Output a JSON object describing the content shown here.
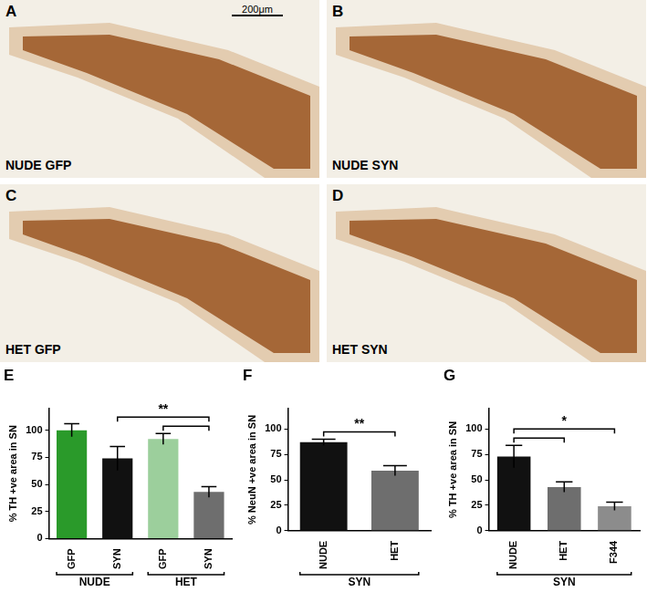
{
  "panels": [
    {
      "letter": "A",
      "label": "NUDE GFP"
    },
    {
      "letter": "B",
      "label": "NUDE SYN"
    },
    {
      "letter": "C",
      "label": "HET GFP"
    },
    {
      "letter": "D",
      "label": "HET SYN"
    }
  ],
  "scale_bar": "200μm",
  "chart_data": [
    {
      "letter": "E",
      "type": "bar",
      "y_label": "% TH +ve area in SN",
      "categories": [
        "GFP",
        "SYN",
        "GFP",
        "SYN"
      ],
      "groups": [
        {
          "label": "NUDE",
          "count": 2
        },
        {
          "label": "HET",
          "count": 2
        }
      ],
      "values": [
        100,
        74,
        92,
        43
      ],
      "errors": [
        6,
        11,
        5,
        5
      ],
      "colors": [
        "#2a9a2a",
        "#111111",
        "#9ccf9c",
        "#6e6e6e"
      ],
      "ylim": [
        0,
        120
      ],
      "yticks": [
        0,
        25,
        50,
        75,
        100
      ],
      "grid": false,
      "significance": [
        {
          "text": "**",
          "pairs": [
            [
              1,
              3
            ],
            [
              2,
              3
            ]
          ]
        }
      ]
    },
    {
      "letter": "F",
      "type": "bar",
      "y_label": "% NeuN +ve area in SN",
      "categories": [
        "NUDE",
        "HET"
      ],
      "groups": [
        {
          "label": "SYN",
          "count": 2
        }
      ],
      "values": [
        87,
        59
      ],
      "errors": [
        3,
        5
      ],
      "colors": [
        "#111111",
        "#6e6e6e"
      ],
      "ylim": [
        0,
        120
      ],
      "yticks": [
        0,
        25,
        50,
        75,
        100
      ],
      "grid": false,
      "significance": [
        {
          "text": "**",
          "pairs": [
            [
              0,
              1
            ]
          ]
        }
      ]
    },
    {
      "letter": "G",
      "type": "bar",
      "y_label": "% TH +ve area in SN",
      "categories": [
        "NUDE",
        "HET",
        "F344"
      ],
      "groups": [
        {
          "label": "SYN",
          "count": 3
        }
      ],
      "values": [
        73,
        43,
        24
      ],
      "errors": [
        11,
        5,
        4
      ],
      "colors": [
        "#111111",
        "#6e6e6e",
        "#8c8c8c"
      ],
      "ylim": [
        0,
        120
      ],
      "yticks": [
        0,
        25,
        50,
        75,
        100
      ],
      "grid": false,
      "significance": [
        {
          "text": "*",
          "pairs": [
            [
              0,
              1
            ],
            [
              0,
              2
            ]
          ]
        }
      ]
    }
  ]
}
